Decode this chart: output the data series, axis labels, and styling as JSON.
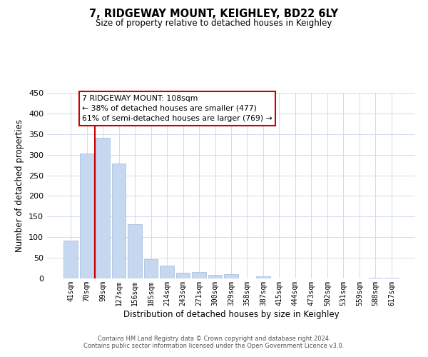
{
  "title": "7, RIDGEWAY MOUNT, KEIGHLEY, BD22 6LY",
  "subtitle": "Size of property relative to detached houses in Keighley",
  "xlabel": "Distribution of detached houses by size in Keighley",
  "ylabel": "Number of detached properties",
  "bar_labels": [
    "41sqm",
    "70sqm",
    "99sqm",
    "127sqm",
    "156sqm",
    "185sqm",
    "214sqm",
    "243sqm",
    "271sqm",
    "300sqm",
    "329sqm",
    "358sqm",
    "387sqm",
    "415sqm",
    "444sqm",
    "473sqm",
    "502sqm",
    "531sqm",
    "559sqm",
    "588sqm",
    "617sqm"
  ],
  "bar_values": [
    92,
    303,
    341,
    279,
    132,
    47,
    31,
    13,
    15,
    8,
    10,
    0,
    5,
    0,
    0,
    0,
    0,
    0,
    0,
    2,
    2
  ],
  "bar_color": "#c5d8f0",
  "bar_edge_color": "#a0b8d8",
  "vline_x_index": 2,
  "vline_color": "#cc0000",
  "ylim": [
    0,
    450
  ],
  "yticks": [
    0,
    50,
    100,
    150,
    200,
    250,
    300,
    350,
    400,
    450
  ],
  "annotation_title": "7 RIDGEWAY MOUNT: 108sqm",
  "annotation_line1": "← 38% of detached houses are smaller (477)",
  "annotation_line2": "61% of semi-detached houses are larger (769) →",
  "footer_line1": "Contains HM Land Registry data © Crown copyright and database right 2024.",
  "footer_line2": "Contains public sector information licensed under the Open Government Licence v3.0.",
  "background_color": "#ffffff",
  "grid_color": "#d0dcea"
}
